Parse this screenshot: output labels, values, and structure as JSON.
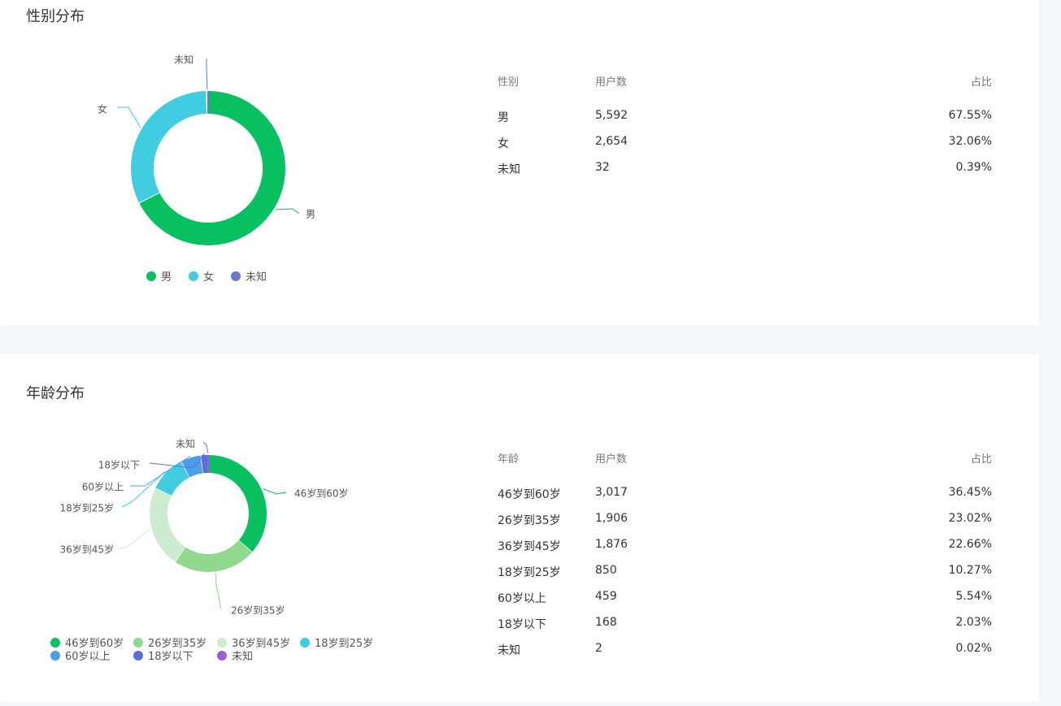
{
  "gender": {
    "title": "性别分布",
    "table": {
      "headers": [
        "性别",
        "用户数",
        "占比"
      ],
      "rows": [
        {
          "label": "男",
          "count": "5,592",
          "pct": "67.55%"
        },
        {
          "label": "女",
          "count": "2,654",
          "pct": "32.06%"
        },
        {
          "label": "未知",
          "count": "32",
          "pct": "0.39%"
        }
      ]
    },
    "chart_data": {
      "type": "pie",
      "title": "",
      "categories": [
        "男",
        "女",
        "未知"
      ],
      "values": [
        5592,
        2654,
        32
      ],
      "colors": [
        "#07c160",
        "#40cde1",
        "#6678d1"
      ],
      "legend": "bottom"
    }
  },
  "age": {
    "title": "年龄分布",
    "table": {
      "headers": [
        "年龄",
        "用户数",
        "占比"
      ],
      "rows": [
        {
          "label": "46岁到60岁",
          "count": "3,017",
          "pct": "36.45%"
        },
        {
          "label": "26岁到35岁",
          "count": "1,906",
          "pct": "23.02%"
        },
        {
          "label": "36岁到45岁",
          "count": "1,876",
          "pct": "22.66%"
        },
        {
          "label": "18岁到25岁",
          "count": "850",
          "pct": "10.27%"
        },
        {
          "label": "60岁以上",
          "count": "459",
          "pct": "5.54%"
        },
        {
          "label": "18岁以下",
          "count": "168",
          "pct": "2.03%"
        },
        {
          "label": "未知",
          "count": "2",
          "pct": "0.02%"
        }
      ]
    },
    "chart_data": {
      "type": "pie",
      "title": "",
      "categories": [
        "46岁到60岁",
        "26岁到35岁",
        "36岁到45岁",
        "18岁到25岁",
        "60岁以上",
        "18岁以下",
        "未知"
      ],
      "values": [
        3017,
        1906,
        1876,
        850,
        459,
        168,
        2
      ],
      "colors": [
        "#07c160",
        "#8fd88c",
        "#cdeccf",
        "#40cde1",
        "#4a9fe8",
        "#5b6fd6",
        "#9b5fd6"
      ],
      "legend": "bottom"
    }
  }
}
